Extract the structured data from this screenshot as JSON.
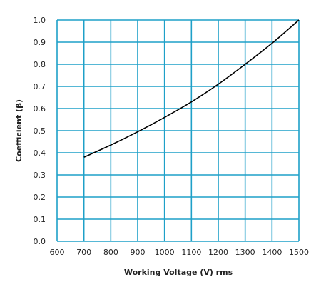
{
  "chart_data": {
    "type": "line",
    "xlabel": "Working Voltage (V) rms",
    "ylabel": "Coefficient (β)",
    "xlim": [
      600,
      1500
    ],
    "ylim": [
      0,
      1.0
    ],
    "x_ticks": [
      600,
      700,
      800,
      900,
      1000,
      1100,
      1200,
      1300,
      1400,
      1500
    ],
    "y_ticks": [
      0.0,
      0.1,
      0.2,
      0.3,
      0.4,
      0.5,
      0.6,
      0.7,
      0.8,
      0.9,
      1.0
    ],
    "x_tick_labels": [
      "600",
      "700",
      "800",
      "900",
      "1000",
      "1100",
      "1200",
      "1300",
      "1400",
      "1500"
    ],
    "y_tick_labels": [
      "0.0",
      "0.1",
      "0.2",
      "0.3",
      "0.4",
      "0.5",
      "0.6",
      "0.7",
      "0.8",
      "0.9",
      "1.0"
    ],
    "grid": true,
    "grid_color": "#1ea0c8",
    "line_color": "#000000",
    "series": [
      {
        "x": [
          700,
          800,
          900,
          1000,
          1100,
          1200,
          1300,
          1400,
          1500
        ],
        "y": [
          0.38,
          0.435,
          0.495,
          0.56,
          0.63,
          0.71,
          0.8,
          0.895,
          1.0
        ]
      }
    ]
  }
}
